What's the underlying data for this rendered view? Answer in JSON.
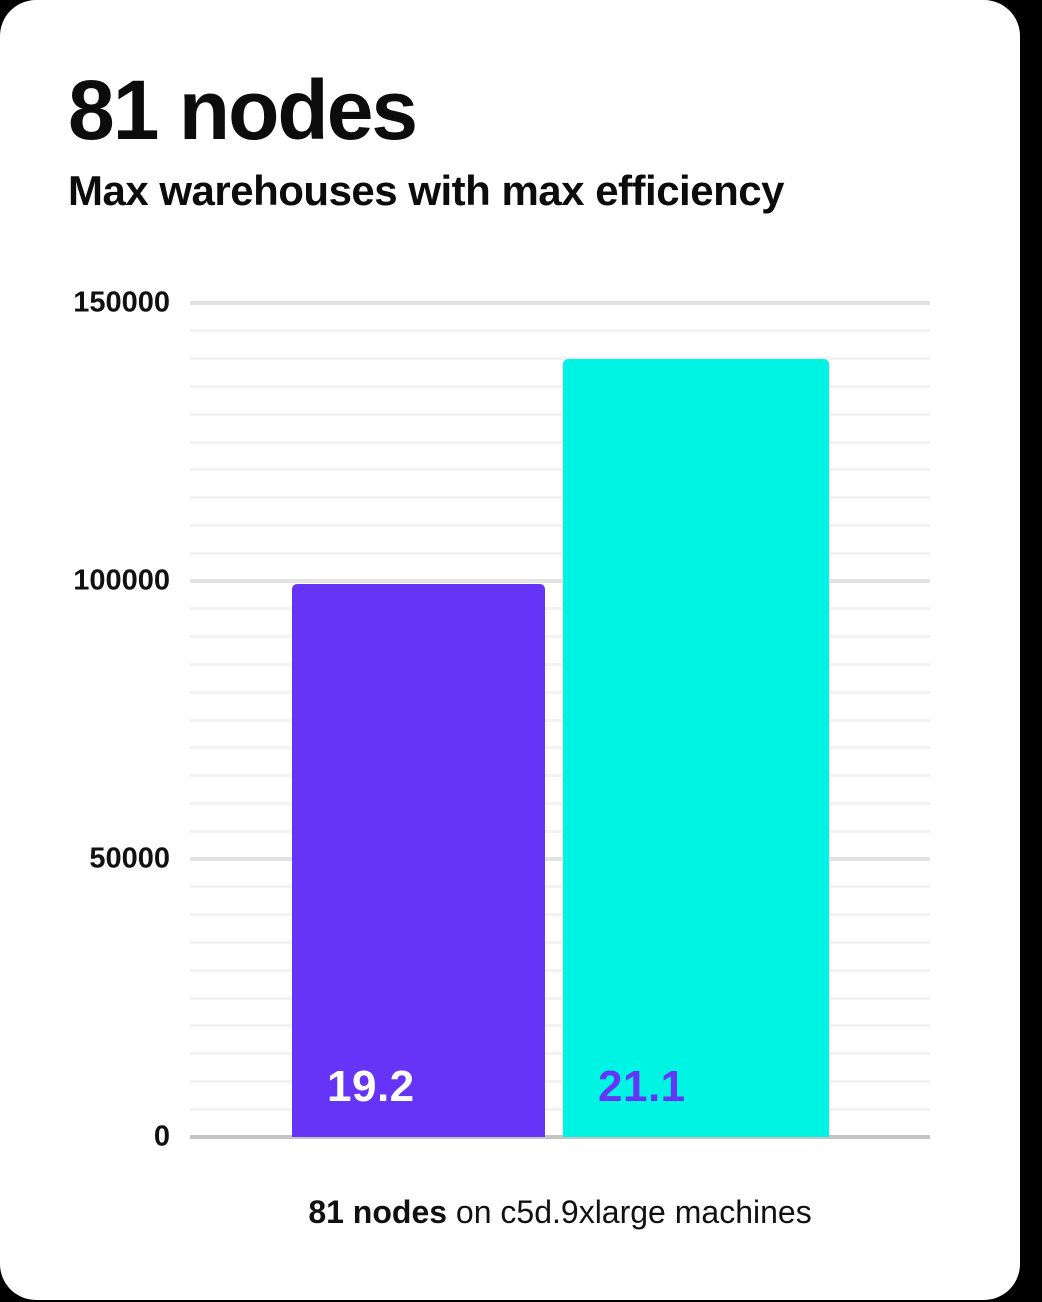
{
  "page": {
    "background_color": "#000000",
    "card_color": "#ffffff"
  },
  "header": {
    "title": "81 nodes",
    "subtitle": "Max warehouses with max efficiency"
  },
  "caption": {
    "bold": "81 nodes",
    "rest": " on c5d.9xlarge machines"
  },
  "chart_data": {
    "type": "bar",
    "title": "81 nodes",
    "subtitle": "Max warehouses with max efficiency",
    "categories": [
      "19.2",
      "21.1"
    ],
    "values": [
      99500,
      140000
    ],
    "bar_labels": [
      "19.2",
      "21.1"
    ],
    "bar_colors": [
      "#6634f6",
      "#00f4e3"
    ],
    "bar_label_colors": [
      "#ffffff",
      "#6634f6"
    ],
    "ylim": [
      0,
      150000
    ],
    "yticks": [
      0,
      50000,
      100000,
      150000
    ],
    "ytick_labels": [
      "0",
      "50000",
      "100000",
      "150000"
    ],
    "minor_grid_step": 5000,
    "major_grid_step": 50000,
    "grid": true,
    "legend": false,
    "xlabel": "",
    "ylabel": "",
    "annotation": "81 nodes on c5d.9xlarge machines",
    "colors": {
      "minor_gridline": "#f2f2f2",
      "major_gridline": "#e3e3e3",
      "axis_line": "#c4c4c4",
      "text": "#111111"
    }
  }
}
